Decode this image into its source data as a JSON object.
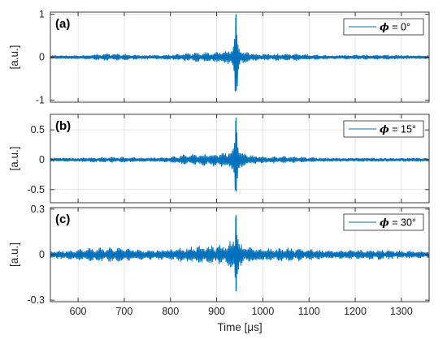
{
  "chart_data": [
    {
      "type": "line",
      "panel_label": "(a)",
      "ylabel": "[a.u.]",
      "yticks": [
        -1,
        0,
        1
      ],
      "ytick_labels": [
        "-1",
        "0",
        "1"
      ],
      "ylim": [
        -1.05,
        1.05
      ],
      "xlim": [
        540,
        1360
      ],
      "grid": true,
      "legend": {
        "position": "top-right",
        "symbol": "ϕ",
        "text": "= 0°"
      },
      "series": [
        {
          "color": "#0072BD",
          "noise_floor": 0.04,
          "envelope_points": [
            [
              540,
              0.05
            ],
            [
              580,
              0.05
            ],
            [
              620,
              0.07
            ],
            [
              660,
              0.09
            ],
            [
              700,
              0.09
            ],
            [
              740,
              0.07
            ],
            [
              780,
              0.08
            ],
            [
              820,
              0.09
            ],
            [
              860,
              0.12
            ],
            [
              900,
              0.14
            ],
            [
              920,
              0.2
            ],
            [
              935,
              0.32
            ],
            [
              942,
              1.0
            ],
            [
              950,
              0.3
            ],
            [
              965,
              0.18
            ],
            [
              990,
              0.12
            ],
            [
              1020,
              0.1
            ],
            [
              1060,
              0.09
            ],
            [
              1100,
              0.08
            ],
            [
              1140,
              0.07
            ],
            [
              1180,
              0.08
            ],
            [
              1220,
              0.07
            ],
            [
              1260,
              0.06
            ],
            [
              1300,
              0.05
            ],
            [
              1360,
              0.05
            ]
          ],
          "negative_peak": -0.78
        }
      ]
    },
    {
      "type": "line",
      "panel_label": "(b)",
      "ylabel": "[a.u.]",
      "yticks": [
        -0.5,
        0,
        0.5
      ],
      "ytick_labels": [
        "-0.5",
        "0",
        "0.5"
      ],
      "ylim": [
        -0.72,
        0.76
      ],
      "xlim": [
        540,
        1360
      ],
      "grid": true,
      "legend": {
        "position": "top-right",
        "symbol": "ϕ",
        "text": "= 15°"
      },
      "series": [
        {
          "color": "#0072BD",
          "noise_floor": 0.03,
          "envelope_points": [
            [
              540,
              0.03
            ],
            [
              580,
              0.04
            ],
            [
              620,
              0.05
            ],
            [
              660,
              0.05
            ],
            [
              700,
              0.06
            ],
            [
              740,
              0.05
            ],
            [
              780,
              0.06
            ],
            [
              820,
              0.09
            ],
            [
              860,
              0.1
            ],
            [
              900,
              0.13
            ],
            [
              920,
              0.17
            ],
            [
              935,
              0.25
            ],
            [
              942,
              0.7
            ],
            [
              950,
              0.24
            ],
            [
              965,
              0.14
            ],
            [
              990,
              0.09
            ],
            [
              1020,
              0.07
            ],
            [
              1060,
              0.06
            ],
            [
              1100,
              0.05
            ],
            [
              1140,
              0.04
            ],
            [
              1180,
              0.04
            ],
            [
              1220,
              0.04
            ],
            [
              1260,
              0.03
            ],
            [
              1300,
              0.03
            ],
            [
              1360,
              0.03
            ]
          ],
          "negative_peak": -0.53
        }
      ]
    },
    {
      "type": "line",
      "panel_label": "(c)",
      "ylabel": "[a.u.]",
      "yticks": [
        -0.3,
        0,
        0.3
      ],
      "ytick_labels": [
        "-0.3",
        "0",
        "0.3"
      ],
      "ylim": [
        -0.31,
        0.31
      ],
      "xlim": [
        540,
        1360
      ],
      "grid": true,
      "xlabel": "Time [μs]",
      "xticks": [
        600,
        700,
        800,
        900,
        1000,
        1100,
        1200,
        1300
      ],
      "xtick_labels": [
        "600",
        "700",
        "800",
        "900",
        "1000",
        "1100",
        "1200",
        "1300"
      ],
      "legend": {
        "position": "top-right",
        "symbol": "ϕ",
        "text": "= 30°"
      },
      "series": [
        {
          "color": "#0072BD",
          "noise_floor": 0.01,
          "envelope_points": [
            [
              540,
              0.04
            ],
            [
              580,
              0.045
            ],
            [
              620,
              0.05
            ],
            [
              660,
              0.05
            ],
            [
              700,
              0.055
            ],
            [
              740,
              0.05
            ],
            [
              780,
              0.05
            ],
            [
              820,
              0.055
            ],
            [
              860,
              0.06
            ],
            [
              900,
              0.07
            ],
            [
              920,
              0.09
            ],
            [
              935,
              0.14
            ],
            [
              942,
              0.26
            ],
            [
              950,
              0.12
            ],
            [
              965,
              0.08
            ],
            [
              990,
              0.06
            ],
            [
              1020,
              0.05
            ],
            [
              1060,
              0.05
            ],
            [
              1100,
              0.045
            ],
            [
              1140,
              0.04
            ],
            [
              1180,
              0.045
            ],
            [
              1220,
              0.04
            ],
            [
              1260,
              0.035
            ],
            [
              1300,
              0.03
            ],
            [
              1360,
              0.035
            ]
          ],
          "negative_peak": -0.24
        }
      ]
    }
  ]
}
